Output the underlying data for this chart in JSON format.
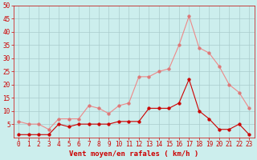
{
  "hours": [
    0,
    1,
    2,
    3,
    4,
    5,
    6,
    7,
    8,
    9,
    10,
    11,
    12,
    13,
    14,
    15,
    16,
    17,
    18,
    19,
    20,
    21,
    22,
    23
  ],
  "wind_avg": [
    1,
    1,
    1,
    1,
    5,
    4,
    5,
    5,
    5,
    5,
    6,
    6,
    6,
    11,
    11,
    11,
    13,
    22,
    10,
    7,
    3,
    3,
    5,
    1
  ],
  "wind_gust": [
    6,
    5,
    5,
    3,
    7,
    7,
    7,
    12,
    11,
    9,
    12,
    13,
    23,
    23,
    25,
    26,
    35,
    46,
    34,
    32,
    27,
    20,
    17,
    11
  ],
  "xlabel": "Vent moyen/en rafales ( km/h )",
  "ylim": [
    0,
    50
  ],
  "ytick_vals": [
    5,
    10,
    15,
    20,
    25,
    30,
    35,
    40,
    45,
    50
  ],
  "ytick_labels": [
    "5",
    "10",
    "15",
    "20",
    "25",
    "30",
    "35",
    "40",
    "45",
    "50"
  ],
  "bg_color": "#cceeed",
  "grid_color": "#aacccc",
  "line_avg_color": "#cc0000",
  "line_gust_color": "#ee8888",
  "marker_avg_color": "#cc0000",
  "marker_gust_color": "#dd7777",
  "xlabel_color": "#cc0000",
  "tick_color": "#cc0000",
  "label_fontsize": 6.5,
  "tick_fontsize": 5.5,
  "marker_size": 2.5,
  "linewidth": 0.8
}
